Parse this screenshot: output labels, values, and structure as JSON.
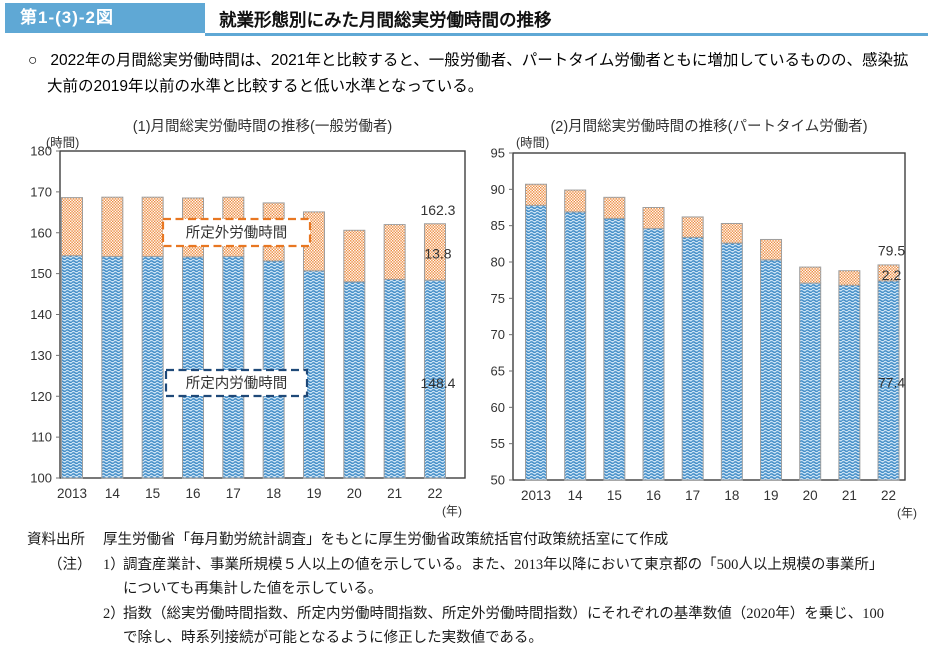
{
  "header": {
    "figure_label": "第1-(3)-2図",
    "title": "就業形態別にみた月間総実労働時間の推移",
    "accent_color": "#5fa8d5"
  },
  "summary": {
    "bullet": "○",
    "text": "2022年の月間総実労働時間は、2021年と比較すると、一般労働者、パートタイム労働者ともに増加しているものの、感染拡大前の2019年以前の水準と比較すると低い水準となっている。"
  },
  "colors": {
    "scheduled_pattern_bg": "#cbe3f5",
    "scheduled_pattern_stroke": "#3f8bc6",
    "overtime_pattern_bg": "#ec8a3d",
    "overtime_pattern_check": "#ffffff",
    "bar_border": "#9e9e9e",
    "axis": "#3f3f3f",
    "tick": "#707070",
    "text": "#333333",
    "scheduled_box_border": "#1f4978",
    "overtime_box_border": "#e87722"
  },
  "chart_data": [
    {
      "type": "bar",
      "stacked": true,
      "title": "(1)月間総実労働時間の推移(一般労働者)",
      "ylabel": "(時間)",
      "xlabel": "(年)",
      "ylim": [
        100,
        180
      ],
      "ystep": 10,
      "grid": false,
      "categories": [
        "2013",
        "14",
        "15",
        "16",
        "17",
        "18",
        "19",
        "20",
        "21",
        "22"
      ],
      "series": [
        {
          "name": "所定内労働時間",
          "values": [
            154.4,
            154.2,
            154.2,
            154.1,
            154.2,
            153.1,
            150.7,
            148.0,
            148.6,
            148.4
          ]
        },
        {
          "name": "所定外労働時間",
          "values": [
            14.2,
            14.5,
            14.5,
            14.4,
            14.5,
            14.2,
            14.4,
            12.6,
            13.4,
            13.8
          ]
        }
      ],
      "annotations": [
        {
          "label": "162.3",
          "value": 165.6
        },
        {
          "label": "13.8",
          "value": 154.9
        },
        {
          "label": "148.4",
          "value": 123.2
        }
      ]
    },
    {
      "type": "bar",
      "stacked": true,
      "title": "(2)月間総実労働時間の推移(パートタイム労働者)",
      "ylabel": "(時間)",
      "xlabel": "(年)",
      "ylim": [
        50,
        95
      ],
      "ystep": 5,
      "grid": false,
      "categories": [
        "2013",
        "14",
        "15",
        "16",
        "17",
        "18",
        "19",
        "20",
        "21",
        "22"
      ],
      "series": [
        {
          "name": "所定内労働時間",
          "values": [
            87.8,
            86.9,
            86.0,
            84.6,
            83.4,
            82.6,
            80.3,
            77.1,
            76.8,
            77.4
          ]
        },
        {
          "name": "所定外労働時間",
          "values": [
            2.9,
            3.0,
            2.9,
            2.9,
            2.8,
            2.7,
            2.8,
            2.2,
            2.0,
            2.2
          ]
        }
      ],
      "annotations": [
        {
          "label": "79.5",
          "value": 81.6
        },
        {
          "label": "2.2",
          "value": 78.2
        },
        {
          "label": "77.4",
          "value": 63.4
        }
      ]
    }
  ],
  "footer": {
    "source_label": "資料出所",
    "source_text": "厚生労働省「毎月勤労統計調査」をもとに厚生労働省政策統括官付政策統括室にて作成",
    "note_label": "（注）",
    "notes": [
      {
        "num": "1）",
        "text": "調査産業計、事業所規模５人以上の値を示している。また、2013年以降において東京都の「500人以上規模の事業所」についても再集計した値を示している。"
      },
      {
        "num": "2）",
        "text": "指数（総実労働時間指数、所定内労働時間指数、所定外労働時間指数）にそれぞれの基準数値（2020年）を乗じ、100で除し、時系列接続が可能となるように修正した実数値である。"
      }
    ]
  }
}
